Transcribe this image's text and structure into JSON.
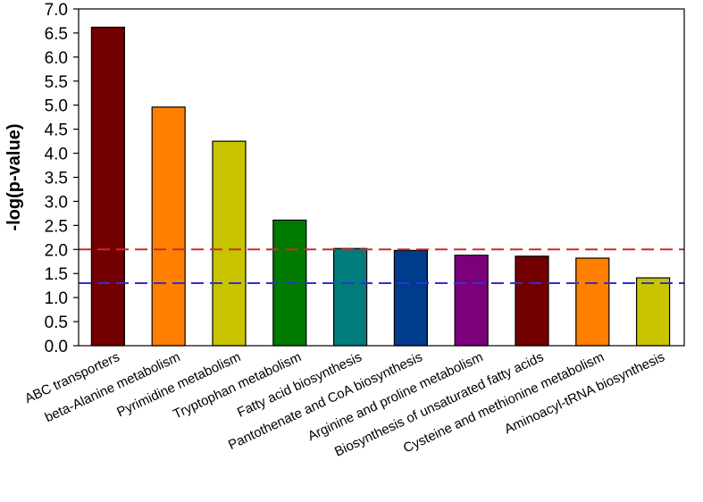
{
  "chart_data": {
    "type": "bar",
    "title": "",
    "xlabel": "",
    "ylabel": "-log(p-value)",
    "ylim": [
      0,
      7.0
    ],
    "yticks": [
      "0.0",
      "0.5",
      "1.0",
      "1.5",
      "2.0",
      "2.5",
      "3.0",
      "3.5",
      "4.0",
      "4.5",
      "5.0",
      "5.5",
      "6.0",
      "6.5",
      "7.0"
    ],
    "grid": false,
    "legend": "none",
    "categories": [
      "ABC transporters",
      "beta-Alanine metabolism",
      "Pyrimidine metabolism",
      "Tryptophan metabolism",
      "Fatty acid biosynthesis",
      "Pantothenate and CoA biosynthesis",
      "Arginine and proline metabolism",
      "Biosynthesis of unsaturated fatty acids",
      "Cysteine and methionine metabolism",
      "Aminoacyl-tRNA biosynthesis"
    ],
    "values": [
      6.62,
      4.96,
      4.25,
      2.61,
      2.02,
      1.98,
      1.88,
      1.86,
      1.82,
      1.41
    ],
    "bar_colors": [
      "#720000",
      "#ff8000",
      "#c8c400",
      "#007a00",
      "#007c7c",
      "#003c8c",
      "#7c007c",
      "#720000",
      "#ff8000",
      "#c8c400"
    ],
    "reference_lines": [
      {
        "value": 2.0,
        "color": "#cc2a2a",
        "style": "dashed"
      },
      {
        "value": 1.3,
        "color": "#3030d0",
        "style": "dashed"
      }
    ]
  }
}
